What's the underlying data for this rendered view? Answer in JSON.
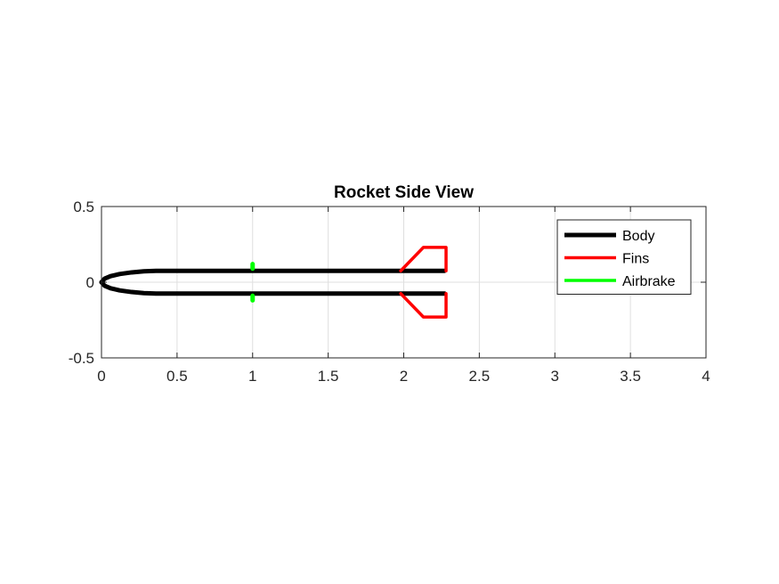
{
  "chart_data": {
    "type": "line",
    "title": "Rocket Side View",
    "xlabel": "",
    "ylabel": "",
    "xlim": [
      0,
      4
    ],
    "ylim": [
      -0.5,
      0.5
    ],
    "xticks": [
      0,
      0.5,
      1,
      1.5,
      2,
      2.5,
      3,
      3.5,
      4
    ],
    "xtick_labels": [
      "0",
      "0.5",
      "1",
      "1.5",
      "2",
      "2.5",
      "3",
      "3.5",
      "4"
    ],
    "yticks": [
      -0.5,
      0,
      0.5
    ],
    "ytick_labels": [
      "-0.5",
      "0",
      "0.5"
    ],
    "grid": true,
    "legend_position": "top-right",
    "series": [
      {
        "name": "Body",
        "color": "#000000",
        "segments": [
          [
            [
              0,
              0
            ],
            [
              0.02,
              0.023
            ],
            [
              0.06,
              0.04
            ],
            [
              0.12,
              0.054
            ],
            [
              0.2,
              0.065
            ],
            [
              0.28,
              0.072
            ],
            [
              0.36,
              0.075
            ],
            [
              2.27,
              0.075
            ]
          ],
          [
            [
              0,
              0
            ],
            [
              0.02,
              -0.023
            ],
            [
              0.06,
              -0.04
            ],
            [
              0.12,
              -0.054
            ],
            [
              0.2,
              -0.065
            ],
            [
              0.28,
              -0.072
            ],
            [
              0.36,
              -0.075
            ],
            [
              2.27,
              -0.075
            ]
          ]
        ]
      },
      {
        "name": "Fins",
        "color": "#ff0000",
        "segments": [
          [
            [
              1.98,
              0.075
            ],
            [
              2.13,
              0.23
            ],
            [
              2.28,
              0.23
            ],
            [
              2.28,
              0.075
            ]
          ],
          [
            [
              1.98,
              -0.075
            ],
            [
              2.13,
              -0.23
            ],
            [
              2.28,
              -0.23
            ],
            [
              2.28,
              -0.075
            ]
          ]
        ]
      },
      {
        "name": "Airbrake",
        "color": "#00ff00",
        "segments": [
          [
            [
              1.0,
              0.09
            ],
            [
              1.0,
              0.12
            ]
          ],
          [
            [
              1.0,
              -0.09
            ],
            [
              1.0,
              -0.12
            ]
          ]
        ]
      }
    ]
  }
}
